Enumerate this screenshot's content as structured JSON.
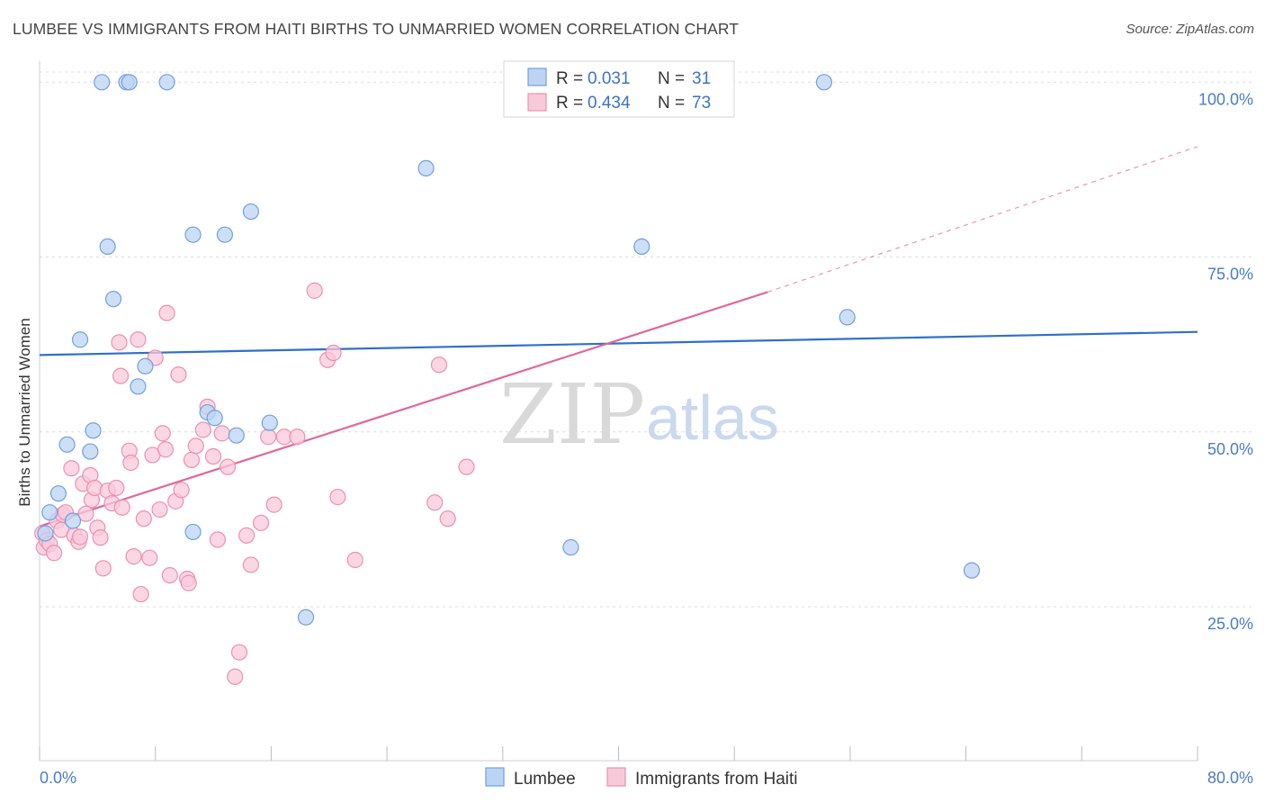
{
  "title": "LUMBEE VS IMMIGRANTS FROM HAITI BIRTHS TO UNMARRIED WOMEN CORRELATION CHART",
  "source": "Source: ZipAtlas.com",
  "watermark": {
    "part1": "ZIP",
    "part2": "atlas"
  },
  "legend_box": {
    "rows": [
      {
        "r_label": "R = ",
        "r_value": "0.031",
        "n_label": "N = ",
        "n_value": "31"
      },
      {
        "r_label": "R = ",
        "r_value": "0.434",
        "n_label": "N = ",
        "n_value": "73"
      }
    ]
  },
  "chart_data": {
    "type": "scatter",
    "xlabel": "",
    "ylabel": "Births to Unmarried Women",
    "xlim": [
      0,
      80
    ],
    "ylim": [
      3,
      103
    ],
    "x_tick_labels": [
      "0.0%",
      "80.0%"
    ],
    "y_tick_labels": [
      "100.0%",
      "75.0%",
      "50.0%",
      "25.0%"
    ],
    "y_ticks": [
      100,
      75,
      50,
      25
    ],
    "grid": true,
    "legend_placement": "bottom-center",
    "series": [
      {
        "name": "Lumbee",
        "color": "#6fa0e0",
        "fill": "#bcd4f3",
        "line_color": "#2f6fc9",
        "trend": {
          "x": [
            0,
            80
          ],
          "y": [
            61.0,
            64.3
          ]
        },
        "points": [
          [
            0.4,
            35.5
          ],
          [
            0.7,
            38.5
          ],
          [
            1.3,
            41.2
          ],
          [
            1.9,
            48.2
          ],
          [
            2.3,
            37.3
          ],
          [
            3.5,
            47.2
          ],
          [
            3.7,
            50.2
          ],
          [
            4.3,
            100.0
          ],
          [
            4.7,
            76.5
          ],
          [
            5.1,
            69.0
          ],
          [
            6.0,
            100.0
          ],
          [
            6.2,
            100.0
          ],
          [
            6.8,
            56.5
          ],
          [
            7.3,
            59.4
          ],
          [
            8.8,
            100.0
          ],
          [
            10.6,
            78.2
          ],
          [
            11.6,
            52.8
          ],
          [
            12.1,
            52.0
          ],
          [
            10.6,
            35.7
          ],
          [
            12.8,
            78.2
          ],
          [
            13.6,
            49.5
          ],
          [
            14.6,
            81.5
          ],
          [
            15.9,
            51.3
          ],
          [
            18.4,
            23.5
          ],
          [
            26.7,
            87.7
          ],
          [
            36.7,
            33.5
          ],
          [
            41.6,
            76.5
          ],
          [
            54.2,
            100.0
          ],
          [
            55.8,
            66.4
          ],
          [
            64.4,
            30.2
          ],
          [
            2.8,
            63.2
          ]
        ]
      },
      {
        "name": "Immigrants from Haiti",
        "color": "#ee8fb0",
        "fill": "#f8cad9",
        "line_color": "#e0679a",
        "trend": {
          "x": [
            0,
            50.3
          ],
          "y": [
            36.5,
            70.0
          ]
        },
        "trend_extension": {
          "x": [
            50.3,
            80
          ],
          "y": [
            70.0,
            90.8
          ]
        },
        "points": [
          [
            0.2,
            35.5
          ],
          [
            0.3,
            33.5
          ],
          [
            0.5,
            34.5
          ],
          [
            0.7,
            34.0
          ],
          [
            1.0,
            32.7
          ],
          [
            1.2,
            37.3
          ],
          [
            1.5,
            36.0
          ],
          [
            1.6,
            38.2
          ],
          [
            1.8,
            38.5
          ],
          [
            2.2,
            44.8
          ],
          [
            2.4,
            35.2
          ],
          [
            2.7,
            34.3
          ],
          [
            2.8,
            35.0
          ],
          [
            3.0,
            42.6
          ],
          [
            3.2,
            38.3
          ],
          [
            3.5,
            43.8
          ],
          [
            3.6,
            40.3
          ],
          [
            3.8,
            42.0
          ],
          [
            4.0,
            36.3
          ],
          [
            4.2,
            34.9
          ],
          [
            4.4,
            30.5
          ],
          [
            4.7,
            41.6
          ],
          [
            5.0,
            39.8
          ],
          [
            5.3,
            42.0
          ],
          [
            5.5,
            62.8
          ],
          [
            5.6,
            58.0
          ],
          [
            5.7,
            39.2
          ],
          [
            6.2,
            47.3
          ],
          [
            6.3,
            45.6
          ],
          [
            6.5,
            32.2
          ],
          [
            6.8,
            63.2
          ],
          [
            7.0,
            26.8
          ],
          [
            7.2,
            37.6
          ],
          [
            7.6,
            32.0
          ],
          [
            7.8,
            46.7
          ],
          [
            8.0,
            60.6
          ],
          [
            8.3,
            38.9
          ],
          [
            8.5,
            49.8
          ],
          [
            8.7,
            47.5
          ],
          [
            8.8,
            67.0
          ],
          [
            9.0,
            29.5
          ],
          [
            9.4,
            40.1
          ],
          [
            9.6,
            58.2
          ],
          [
            9.8,
            41.7
          ],
          [
            10.2,
            29.0
          ],
          [
            10.3,
            28.4
          ],
          [
            10.5,
            46.0
          ],
          [
            10.8,
            48.0
          ],
          [
            11.3,
            50.3
          ],
          [
            11.6,
            53.6
          ],
          [
            12.0,
            46.5
          ],
          [
            12.3,
            34.6
          ],
          [
            12.6,
            49.8
          ],
          [
            13.0,
            45.0
          ],
          [
            13.5,
            15.0
          ],
          [
            13.8,
            18.5
          ],
          [
            14.3,
            35.2
          ],
          [
            14.6,
            31.0
          ],
          [
            15.3,
            37.0
          ],
          [
            15.8,
            49.3
          ],
          [
            16.2,
            39.6
          ],
          [
            16.9,
            49.3
          ],
          [
            17.8,
            49.3
          ],
          [
            19.0,
            70.2
          ],
          [
            19.9,
            60.3
          ],
          [
            20.3,
            61.3
          ],
          [
            20.6,
            40.7
          ],
          [
            21.8,
            31.7
          ],
          [
            27.3,
            39.9
          ],
          [
            27.6,
            59.6
          ],
          [
            28.2,
            37.6
          ],
          [
            29.5,
            45.0
          ],
          [
            44.4,
            100.3
          ]
        ]
      }
    ]
  }
}
